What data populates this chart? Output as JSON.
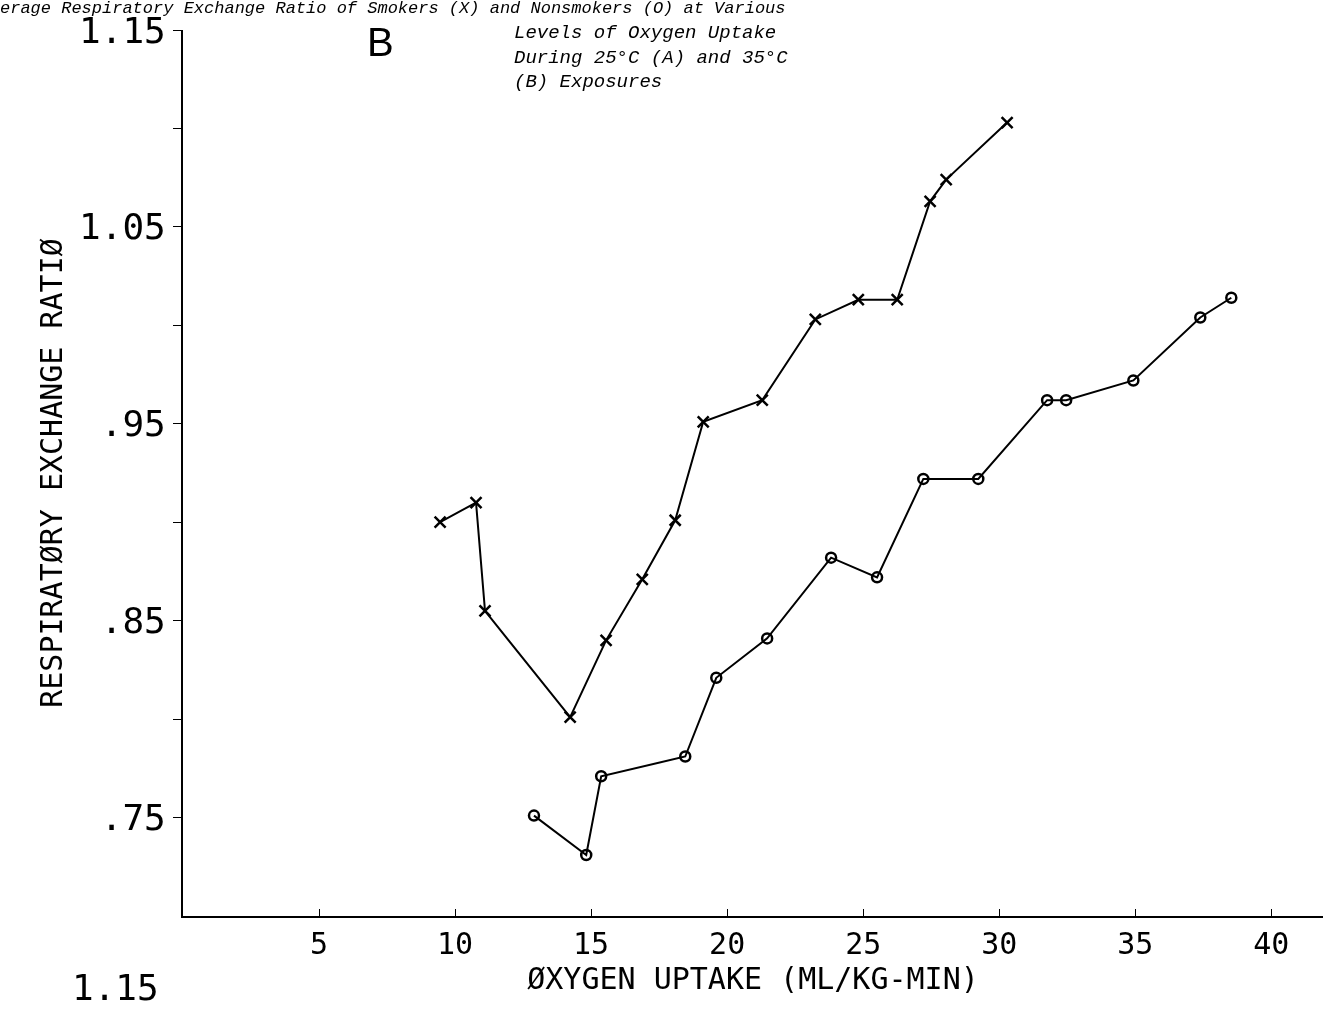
{
  "chart_data": {
    "type": "line",
    "title": "erage Respiratory Exchange Ratio of Smokers (X) and Nonsmokers (O) at Various",
    "annotations": [
      "B",
      "Levels of Oxygen Uptake\nDuring 25°C (A) and 35°C\n(B) Exposures",
      "1.15"
    ],
    "xlabel": "ØXYGEN UPTAKE (ML/KG-MIN)",
    "ylabel": "RESPIRATØRY EXCHANGE RATIØ",
    "xlim": [
      0,
      41.9
    ],
    "xticks": [
      5,
      10,
      15,
      20,
      25,
      30,
      35,
      40
    ],
    "ylim": [
      0.7,
      1.15
    ],
    "yticks": [
      {
        "value": 0.75,
        "label": ".75"
      },
      {
        "value": 0.8,
        "label": null
      },
      {
        "value": 0.85,
        "label": ".85"
      },
      {
        "value": 0.9,
        "label": null
      },
      {
        "value": 0.95,
        "label": ".95"
      },
      {
        "value": 1.0,
        "label": null
      },
      {
        "value": 1.05,
        "label": "1.05"
      },
      {
        "value": 1.1,
        "label": null
      },
      {
        "value": 1.15,
        "label": "1.15"
      }
    ],
    "grid": false,
    "line_style": "solid",
    "series": [
      {
        "color": "#000000",
        "marker": "cross",
        "x": [
          9.45,
          10.77,
          11.1,
          14.23,
          15.55,
          16.88,
          18.09,
          19.12,
          21.29,
          23.24,
          24.82,
          26.25,
          27.46,
          28.05,
          30.29
        ],
        "values": [
          0.9,
          0.91,
          0.855,
          0.801,
          0.84,
          0.871,
          0.901,
          0.951,
          0.962,
          1.003,
          1.013,
          1.013,
          1.063,
          1.074,
          1.103
        ]
      },
      {
        "color": "#000000",
        "marker": "circle",
        "x": [
          12.9,
          14.82,
          15.37,
          18.46,
          19.6,
          21.47,
          23.82,
          25.51,
          27.21,
          29.23,
          31.76,
          32.46,
          34.93,
          37.39,
          38.53
        ],
        "values": [
          0.751,
          0.731,
          0.771,
          0.781,
          0.821,
          0.841,
          0.882,
          0.872,
          0.922,
          0.922,
          0.962,
          0.962,
          0.972,
          1.004,
          1.014
        ]
      }
    ]
  }
}
